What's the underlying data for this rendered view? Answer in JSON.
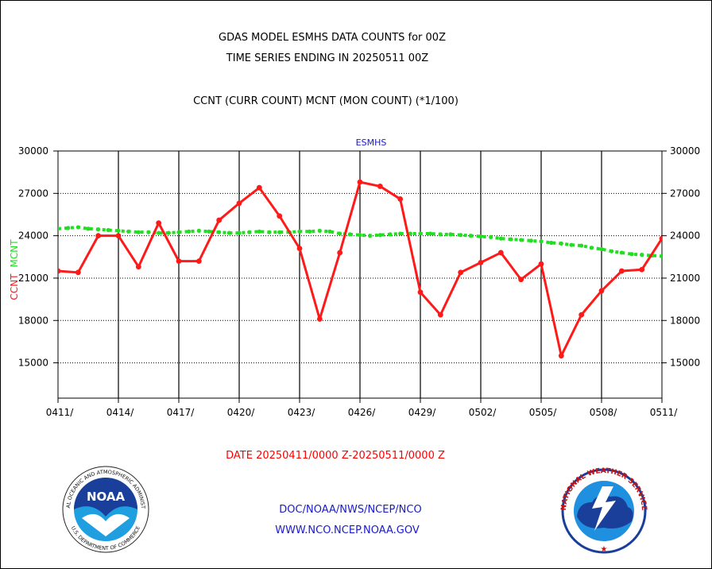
{
  "header": {
    "title_line1": "GDAS MODEL ESMHS DATA COUNTS for 00Z",
    "title_line2": "TIME SERIES ENDING IN 20250511 00Z",
    "subtitle": "CCNT (CURR COUNT) MCNT (MON COUNT) (*1/100)"
  },
  "footer": {
    "date_range": "DATE 20250411/0000 Z-20250511/0000 Z",
    "agency": "DOC/NOAA/NWS/NCEP/NCO",
    "website": "WWW.NCO.NCEP.NOAA.GOV"
  },
  "logos": {
    "noaa": "NOAA",
    "noaa_ring": "NATIONAL OCEANIC AND ATMOSPHERIC ADMINISTRATION",
    "noaa_bottom": "U.S. DEPARTMENT OF COMMERCE",
    "nws_ring": "NATIONAL WEATHER SERVICE"
  },
  "colors": {
    "ccnt": "#ff1a1a",
    "mcnt": "#22dd22",
    "panel_label": "#1a1acc"
  },
  "chart_data": {
    "type": "line",
    "title": "ESMHS",
    "ylabel_ccnt": "CCNT",
    "ylabel_mcnt": "MCNT",
    "ylim": [
      12500,
      30000
    ],
    "yticks": [
      15000,
      18000,
      21000,
      24000,
      27000,
      30000
    ],
    "ytick_labels": [
      "15000",
      "18000",
      "21000",
      "24000",
      "27000",
      "30000"
    ],
    "xticks": [
      0,
      3,
      6,
      9,
      12,
      15,
      18,
      21,
      24,
      27,
      30
    ],
    "xtick_labels": [
      "0411/",
      "0414/",
      "0417/",
      "0420/",
      "0423/",
      "0426/",
      "0429/",
      "0502/",
      "0505/",
      "0508/",
      "0511/"
    ],
    "grid": true,
    "series": [
      {
        "name": "CCNT",
        "color": "#ff1a1a",
        "x": [
          0,
          1,
          2,
          3,
          4,
          5,
          6,
          7,
          8,
          9,
          10,
          11,
          12,
          13,
          14,
          15,
          16,
          17,
          18,
          19,
          20,
          21,
          22,
          23,
          24,
          25,
          26,
          27,
          28,
          29,
          30
        ],
        "values": [
          21500,
          21400,
          24000,
          24000,
          21800,
          24900,
          22200,
          22200,
          25100,
          26300,
          27400,
          25400,
          23100,
          18100,
          22800,
          27800,
          27500,
          26600,
          20000,
          18400,
          21400,
          22100,
          22800,
          20900,
          22000,
          15500,
          18400,
          20100,
          21500,
          21600,
          23800
        ]
      },
      {
        "name": "MCNT",
        "color": "#22dd22",
        "x": [
          0,
          0.5,
          1,
          1.5,
          2,
          2.5,
          3,
          3.5,
          4,
          4.5,
          5,
          5.5,
          6,
          6.5,
          7,
          7.5,
          8,
          8.5,
          9,
          9.5,
          10,
          10.5,
          11,
          11.5,
          12,
          12.5,
          13,
          13.5,
          14,
          14.5,
          15,
          15.5,
          16,
          16.5,
          17,
          17.5,
          18,
          18.5,
          19,
          19.5,
          20,
          20.5,
          21,
          21.5,
          22,
          22.5,
          23,
          23.5,
          24,
          24.5,
          25,
          25.5,
          26,
          26.5,
          27,
          27.5,
          28,
          28.5,
          29,
          29.5,
          30
        ],
        "values": [
          24500,
          24550,
          24600,
          24500,
          24450,
          24400,
          24350,
          24300,
          24250,
          24250,
          24200,
          24200,
          24250,
          24300,
          24350,
          24300,
          24250,
          24200,
          24200,
          24250,
          24300,
          24250,
          24250,
          24250,
          24300,
          24300,
          24350,
          24300,
          24150,
          24100,
          24050,
          24000,
          24050,
          24100,
          24150,
          24150,
          24150,
          24150,
          24100,
          24100,
          24050,
          24000,
          23950,
          23900,
          23800,
          23750,
          23700,
          23650,
          23600,
          23500,
          23450,
          23350,
          23300,
          23150,
          23050,
          22900,
          22800,
          22700,
          22650,
          22600,
          22550
        ]
      }
    ]
  }
}
